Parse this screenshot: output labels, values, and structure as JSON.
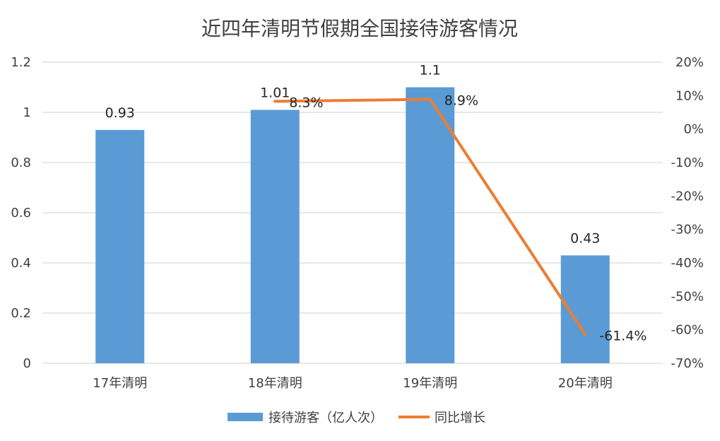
{
  "chart_data": {
    "type": "bar",
    "title": "近四年清明节假期全国接待游客情况",
    "categories": [
      "17年清明",
      "18年清明",
      "19年清明",
      "20年清明"
    ],
    "series": [
      {
        "name": "接待游客（亿人次）",
        "type": "bar",
        "axis": "left",
        "color": "#5B9BD5",
        "values": [
          0.93,
          1.01,
          1.1,
          0.43
        ],
        "labels": [
          "0.93",
          "1.01",
          "1.1",
          "0.43"
        ]
      },
      {
        "name": "同比增长",
        "type": "line",
        "axis": "right",
        "color": "#ED7D31",
        "values": [
          null,
          8.3,
          8.9,
          -61.4
        ],
        "labels": [
          "",
          "8.3%",
          "8.9%",
          "-61.4%"
        ]
      }
    ],
    "y_left": {
      "min": 0,
      "max": 1.2,
      "ticks": [
        0,
        0.2,
        0.4,
        0.6,
        0.8,
        1,
        1.2
      ],
      "tick_labels": [
        "0",
        "0.2",
        "0.4",
        "0.6",
        "0.8",
        "1",
        "1.2"
      ]
    },
    "y_right": {
      "min": -70,
      "max": 20,
      "unit": "%",
      "ticks": [
        -70,
        -60,
        -50,
        -40,
        -30,
        -20,
        -10,
        0,
        10,
        20
      ],
      "tick_labels": [
        "-70%",
        "-60%",
        "-50%",
        "-40%",
        "-30%",
        "-20%",
        "-10%",
        "0%",
        "10%",
        "20%"
      ]
    },
    "grid": true,
    "legend_position": "bottom",
    "gridline_color": "#D9D9D9"
  }
}
